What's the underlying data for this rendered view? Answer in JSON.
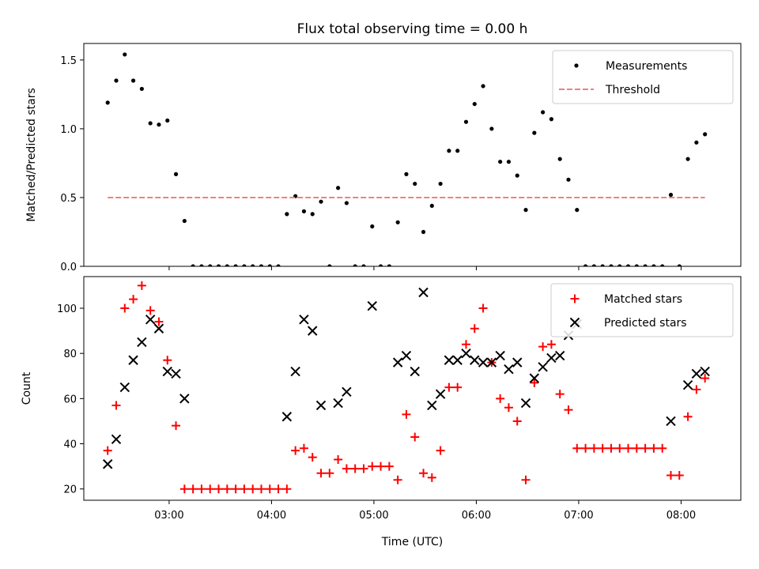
{
  "chart_data": [
    {
      "type": "scatter",
      "title": "Flux total observing time = 0.00 h",
      "xlabel": "",
      "ylabel": "Matched/Predicted stars",
      "xlim": [
        "02:10",
        "08:35"
      ],
      "ylim": [
        0,
        1.62
      ],
      "y_ticks": [
        "0.0",
        "0.5",
        "1.0",
        "1.5"
      ],
      "y_tick_values": [
        0,
        0.5,
        1.0,
        1.5
      ],
      "x_tick_values": [
        "03:00",
        "04:00",
        "05:00",
        "06:00",
        "07:00",
        "08:00"
      ],
      "legend_position": "upper right",
      "series": [
        {
          "name": "Measurements",
          "marker": "dot",
          "color": "#000000",
          "points": [
            [
              "02:24",
              1.19
            ],
            [
              "02:29",
              1.35
            ],
            [
              "02:34",
              1.54
            ],
            [
              "02:39",
              1.35
            ],
            [
              "02:44",
              1.29
            ],
            [
              "02:49",
              1.04
            ],
            [
              "02:54",
              1.03
            ],
            [
              "02:59",
              1.06
            ],
            [
              "03:04",
              0.67
            ],
            [
              "03:09",
              0.33
            ],
            [
              "03:14",
              0.0
            ],
            [
              "03:19",
              0.0
            ],
            [
              "03:24",
              0.0
            ],
            [
              "03:29",
              0.0
            ],
            [
              "03:34",
              0.0
            ],
            [
              "03:39",
              0.0
            ],
            [
              "03:44",
              0.0
            ],
            [
              "03:49",
              0.0
            ],
            [
              "03:54",
              0.0
            ],
            [
              "03:59",
              0.0
            ],
            [
              "04:04",
              0.0
            ],
            [
              "04:09",
              0.38
            ],
            [
              "04:14",
              0.51
            ],
            [
              "04:19",
              0.4
            ],
            [
              "04:24",
              0.38
            ],
            [
              "04:29",
              0.47
            ],
            [
              "04:34",
              0.0
            ],
            [
              "04:39",
              0.57
            ],
            [
              "04:44",
              0.46
            ],
            [
              "04:49",
              0.0
            ],
            [
              "04:54",
              0.0
            ],
            [
              "04:59",
              0.29
            ],
            [
              "05:04",
              0.0
            ],
            [
              "05:09",
              0.0
            ],
            [
              "05:14",
              0.32
            ],
            [
              "05:19",
              0.67
            ],
            [
              "05:24",
              0.6
            ],
            [
              "05:29",
              0.25
            ],
            [
              "05:34",
              0.44
            ],
            [
              "05:39",
              0.6
            ],
            [
              "05:44",
              0.84
            ],
            [
              "05:49",
              0.84
            ],
            [
              "05:54",
              1.05
            ],
            [
              "05:59",
              1.18
            ],
            [
              "06:04",
              1.31
            ],
            [
              "06:09",
              1.0
            ],
            [
              "06:14",
              0.76
            ],
            [
              "06:19",
              0.76
            ],
            [
              "06:24",
              0.66
            ],
            [
              "06:29",
              0.41
            ],
            [
              "06:34",
              0.97
            ],
            [
              "06:39",
              1.12
            ],
            [
              "06:44",
              1.07
            ],
            [
              "06:49",
              0.78
            ],
            [
              "06:54",
              0.63
            ],
            [
              "06:59",
              0.41
            ],
            [
              "07:04",
              0.0
            ],
            [
              "07:09",
              0.0
            ],
            [
              "07:14",
              0.0
            ],
            [
              "07:19",
              0.0
            ],
            [
              "07:24",
              0.0
            ],
            [
              "07:29",
              0.0
            ],
            [
              "07:34",
              0.0
            ],
            [
              "07:39",
              0.0
            ],
            [
              "07:44",
              0.0
            ],
            [
              "07:49",
              0.0
            ],
            [
              "07:54",
              0.52
            ],
            [
              "07:59",
              0.0
            ],
            [
              "08:04",
              0.78
            ],
            [
              "08:09",
              0.9
            ],
            [
              "08:14",
              0.96
            ]
          ]
        },
        {
          "name": "Threshold",
          "marker": "dashed-line",
          "color": "#f08080",
          "points": [
            [
              "02:24",
              0.5
            ],
            [
              "08:14",
              0.5
            ]
          ]
        }
      ]
    },
    {
      "type": "scatter",
      "title": "",
      "xlabel": "Time (UTC)",
      "ylabel": "Count",
      "xlim": [
        "02:10",
        "08:35"
      ],
      "ylim": [
        15,
        114
      ],
      "y_ticks": [
        "20",
        "40",
        "60",
        "80",
        "100"
      ],
      "y_tick_values": [
        20,
        40,
        60,
        80,
        100
      ],
      "x_ticks": [
        "03:00",
        "04:00",
        "05:00",
        "06:00",
        "07:00",
        "08:00"
      ],
      "legend_position": "upper right",
      "series": [
        {
          "name": "Matched stars",
          "marker": "plus",
          "color": "#ff0000",
          "points": [
            [
              "02:24",
              37
            ],
            [
              "02:29",
              57
            ],
            [
              "02:34",
              100
            ],
            [
              "02:39",
              104
            ],
            [
              "02:44",
              110
            ],
            [
              "02:49",
              99
            ],
            [
              "02:54",
              94
            ],
            [
              "02:59",
              77
            ],
            [
              "03:04",
              48
            ],
            [
              "03:09",
              20
            ],
            [
              "03:14",
              20
            ],
            [
              "03:19",
              20
            ],
            [
              "03:24",
              20
            ],
            [
              "03:29",
              20
            ],
            [
              "03:34",
              20
            ],
            [
              "03:39",
              20
            ],
            [
              "03:44",
              20
            ],
            [
              "03:49",
              20
            ],
            [
              "03:54",
              20
            ],
            [
              "03:59",
              20
            ],
            [
              "04:04",
              20
            ],
            [
              "04:09",
              20
            ],
            [
              "04:14",
              37
            ],
            [
              "04:19",
              38
            ],
            [
              "04:24",
              34
            ],
            [
              "04:29",
              27
            ],
            [
              "04:34",
              27
            ],
            [
              "04:39",
              33
            ],
            [
              "04:44",
              29
            ],
            [
              "04:49",
              29
            ],
            [
              "04:54",
              29
            ],
            [
              "04:59",
              30
            ],
            [
              "05:04",
              30
            ],
            [
              "05:09",
              30
            ],
            [
              "05:14",
              24
            ],
            [
              "05:19",
              53
            ],
            [
              "05:24",
              43
            ],
            [
              "05:29",
              27
            ],
            [
              "05:34",
              25
            ],
            [
              "05:39",
              37
            ],
            [
              "05:44",
              65
            ],
            [
              "05:49",
              65
            ],
            [
              "05:54",
              84
            ],
            [
              "05:59",
              91
            ],
            [
              "06:04",
              100
            ],
            [
              "06:09",
              76
            ],
            [
              "06:14",
              60
            ],
            [
              "06:19",
              56
            ],
            [
              "06:24",
              50
            ],
            [
              "06:29",
              24
            ],
            [
              "06:34",
              67
            ],
            [
              "06:39",
              83
            ],
            [
              "06:44",
              84
            ],
            [
              "06:49",
              62
            ],
            [
              "06:54",
              55
            ],
            [
              "06:59",
              38
            ],
            [
              "07:04",
              38
            ],
            [
              "07:09",
              38
            ],
            [
              "07:14",
              38
            ],
            [
              "07:19",
              38
            ],
            [
              "07:24",
              38
            ],
            [
              "07:29",
              38
            ],
            [
              "07:34",
              38
            ],
            [
              "07:39",
              38
            ],
            [
              "07:44",
              38
            ],
            [
              "07:49",
              38
            ],
            [
              "07:54",
              26
            ],
            [
              "07:59",
              26
            ],
            [
              "08:04",
              52
            ],
            [
              "08:09",
              64
            ],
            [
              "08:14",
              69
            ]
          ]
        },
        {
          "name": "Predicted stars",
          "marker": "x",
          "color": "#000000",
          "points": [
            [
              "02:24",
              31
            ],
            [
              "02:29",
              42
            ],
            [
              "02:34",
              65
            ],
            [
              "02:39",
              77
            ],
            [
              "02:44",
              85
            ],
            [
              "02:49",
              95
            ],
            [
              "02:54",
              91
            ],
            [
              "02:59",
              72
            ],
            [
              "03:04",
              71
            ],
            [
              "03:09",
              60
            ],
            [
              "04:09",
              52
            ],
            [
              "04:14",
              72
            ],
            [
              "04:19",
              95
            ],
            [
              "04:24",
              90
            ],
            [
              "04:29",
              57
            ],
            [
              "04:39",
              58
            ],
            [
              "04:44",
              63
            ],
            [
              "04:59",
              101
            ],
            [
              "05:14",
              76
            ],
            [
              "05:19",
              79
            ],
            [
              "05:24",
              72
            ],
            [
              "05:29",
              107
            ],
            [
              "05:34",
              57
            ],
            [
              "05:39",
              62
            ],
            [
              "05:44",
              77
            ],
            [
              "05:49",
              77
            ],
            [
              "05:54",
              80
            ],
            [
              "05:59",
              77
            ],
            [
              "06:04",
              76
            ],
            [
              "06:09",
              76
            ],
            [
              "06:14",
              79
            ],
            [
              "06:19",
              73
            ],
            [
              "06:24",
              76
            ],
            [
              "06:29",
              58
            ],
            [
              "06:34",
              69
            ],
            [
              "06:39",
              74
            ],
            [
              "06:44",
              78
            ],
            [
              "06:49",
              79
            ],
            [
              "06:54",
              88
            ],
            [
              "06:59",
              93
            ],
            [
              "07:54",
              50
            ],
            [
              "08:04",
              66
            ],
            [
              "08:09",
              71
            ],
            [
              "08:14",
              72
            ]
          ]
        }
      ]
    }
  ]
}
